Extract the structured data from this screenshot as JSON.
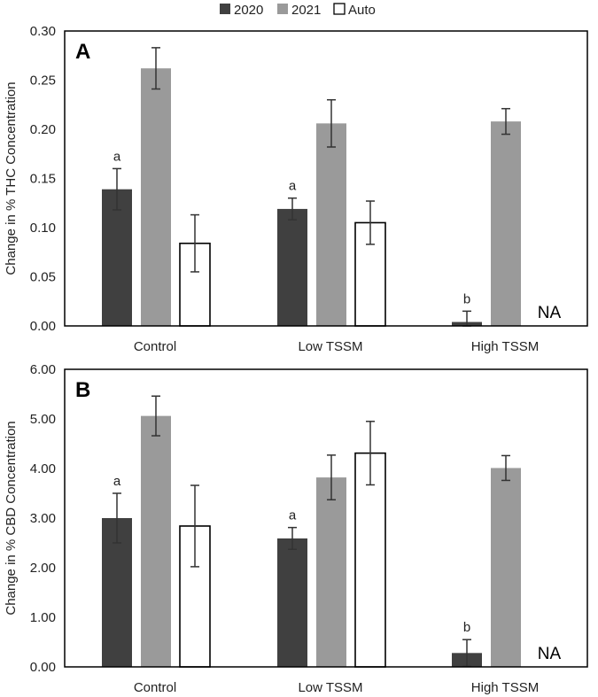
{
  "colors": {
    "s2020": "#404040",
    "s2021": "#9a9a9a",
    "auto": "#ffffff",
    "stroke": "#000000",
    "error": "#333333"
  },
  "legend": [
    "2020",
    "2021",
    "Auto"
  ],
  "chart_data": [
    {
      "type": "bar",
      "panel_label": "A",
      "ylabel": "Change in % THC Concentration",
      "ylim": [
        0,
        0.3
      ],
      "ytick_labels": [
        "0.00",
        "0.05",
        "0.10",
        "0.15",
        "0.20",
        "0.25",
        "0.30"
      ],
      "categories": [
        "Control",
        "Low TSSM",
        "High TSSM"
      ],
      "series": [
        {
          "name": "2020",
          "values": [
            0.139,
            0.119,
            0.004
          ],
          "errors": [
            0.021,
            0.011,
            0.011
          ],
          "letters": [
            "a",
            "a",
            "b"
          ]
        },
        {
          "name": "2021",
          "values": [
            0.262,
            0.206,
            0.208
          ],
          "errors": [
            0.021,
            0.024,
            0.013
          ]
        },
        {
          "name": "Auto",
          "values": [
            0.084,
            0.105,
            null
          ],
          "errors": [
            0.029,
            0.022,
            null
          ]
        }
      ],
      "na_label": "NA"
    },
    {
      "type": "bar",
      "panel_label": "B",
      "ylabel": "Change in % CBD Concentration",
      "ylim": [
        0,
        6
      ],
      "ytick_labels": [
        "0.00",
        "1.00",
        "2.00",
        "3.00",
        "4.00",
        "5.00",
        "6.00"
      ],
      "categories": [
        "Control",
        "Low TSSM",
        "High TSSM"
      ],
      "series": [
        {
          "name": "2020",
          "values": [
            3.0,
            2.59,
            0.28
          ],
          "errors": [
            0.5,
            0.22,
            0.27
          ],
          "letters": [
            "a",
            "a",
            "b"
          ]
        },
        {
          "name": "2021",
          "values": [
            5.06,
            3.82,
            4.01
          ],
          "errors": [
            0.4,
            0.45,
            0.25
          ]
        },
        {
          "name": "Auto",
          "values": [
            2.84,
            4.31,
            null
          ],
          "errors": [
            0.82,
            0.64,
            null
          ]
        }
      ],
      "na_label": "NA"
    }
  ]
}
